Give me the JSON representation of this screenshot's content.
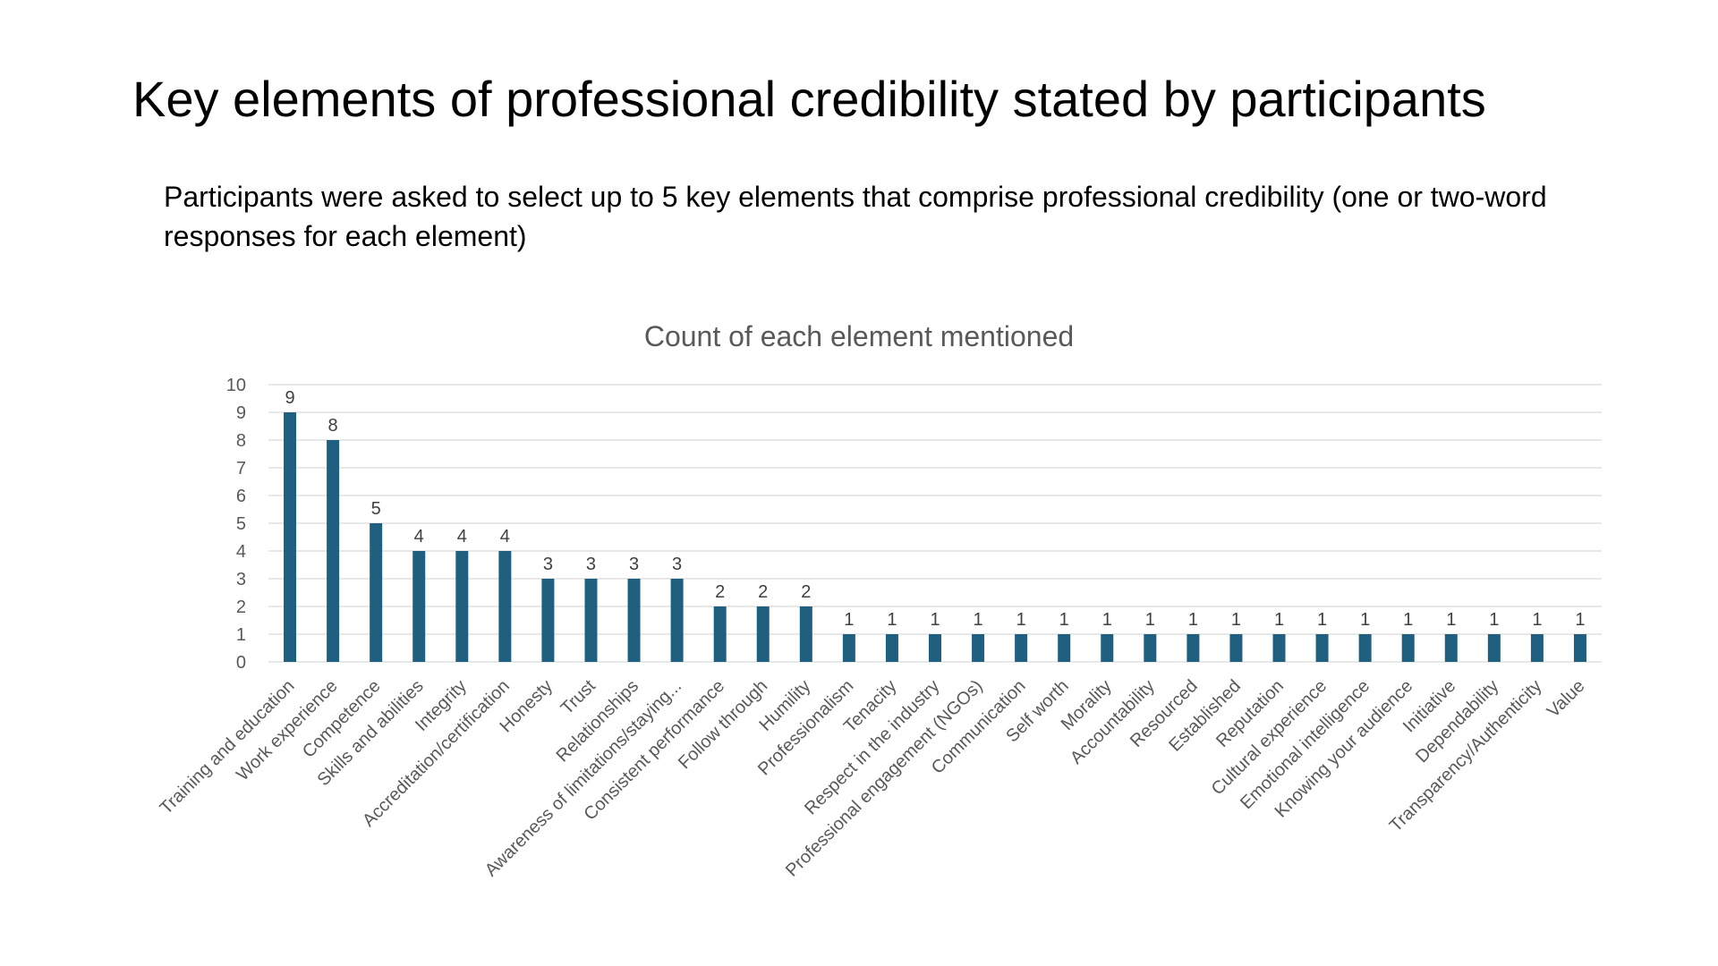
{
  "slide": {
    "title": "Key elements of professional credibility stated by participants",
    "subtitle": "Participants were asked to select up to 5 key elements that comprise professional credibility (one or two-word responses for each element)"
  },
  "chart_data": {
    "type": "bar",
    "title": "Count of each element mentioned",
    "xlabel": "",
    "ylabel": "",
    "ylim": [
      0,
      10
    ],
    "yticks": [
      0,
      1,
      2,
      3,
      4,
      5,
      6,
      7,
      8,
      9,
      10
    ],
    "grid": true,
    "legend": "none",
    "data_labels": true,
    "bar_color": "#1F5F80",
    "categories": [
      "Training and education",
      "Work experience",
      "Competence",
      "Skills and abilities",
      "Integrity",
      "Accreditation/certification",
      "Honesty",
      "Trust",
      "Relationships",
      "Awareness of limitations/staying...",
      "Consistent performance",
      "Follow through",
      "Humility",
      "Professionalism",
      "Tenacity",
      "Respect in the industry",
      "Professional engagement (NGOs)",
      "Communication",
      "Self worth",
      "Morality",
      "Accountability",
      "Resourced",
      "Established",
      "Reputation",
      "Cultural experience",
      "Emotional intelligence",
      "Knowing your audience",
      "Initiative",
      "Dependability",
      "Transparency/Authenticity",
      "Value"
    ],
    "values": [
      9,
      8,
      5,
      4,
      4,
      4,
      3,
      3,
      3,
      3,
      2,
      2,
      2,
      1,
      1,
      1,
      1,
      1,
      1,
      1,
      1,
      1,
      1,
      1,
      1,
      1,
      1,
      1,
      1,
      1,
      1
    ]
  }
}
